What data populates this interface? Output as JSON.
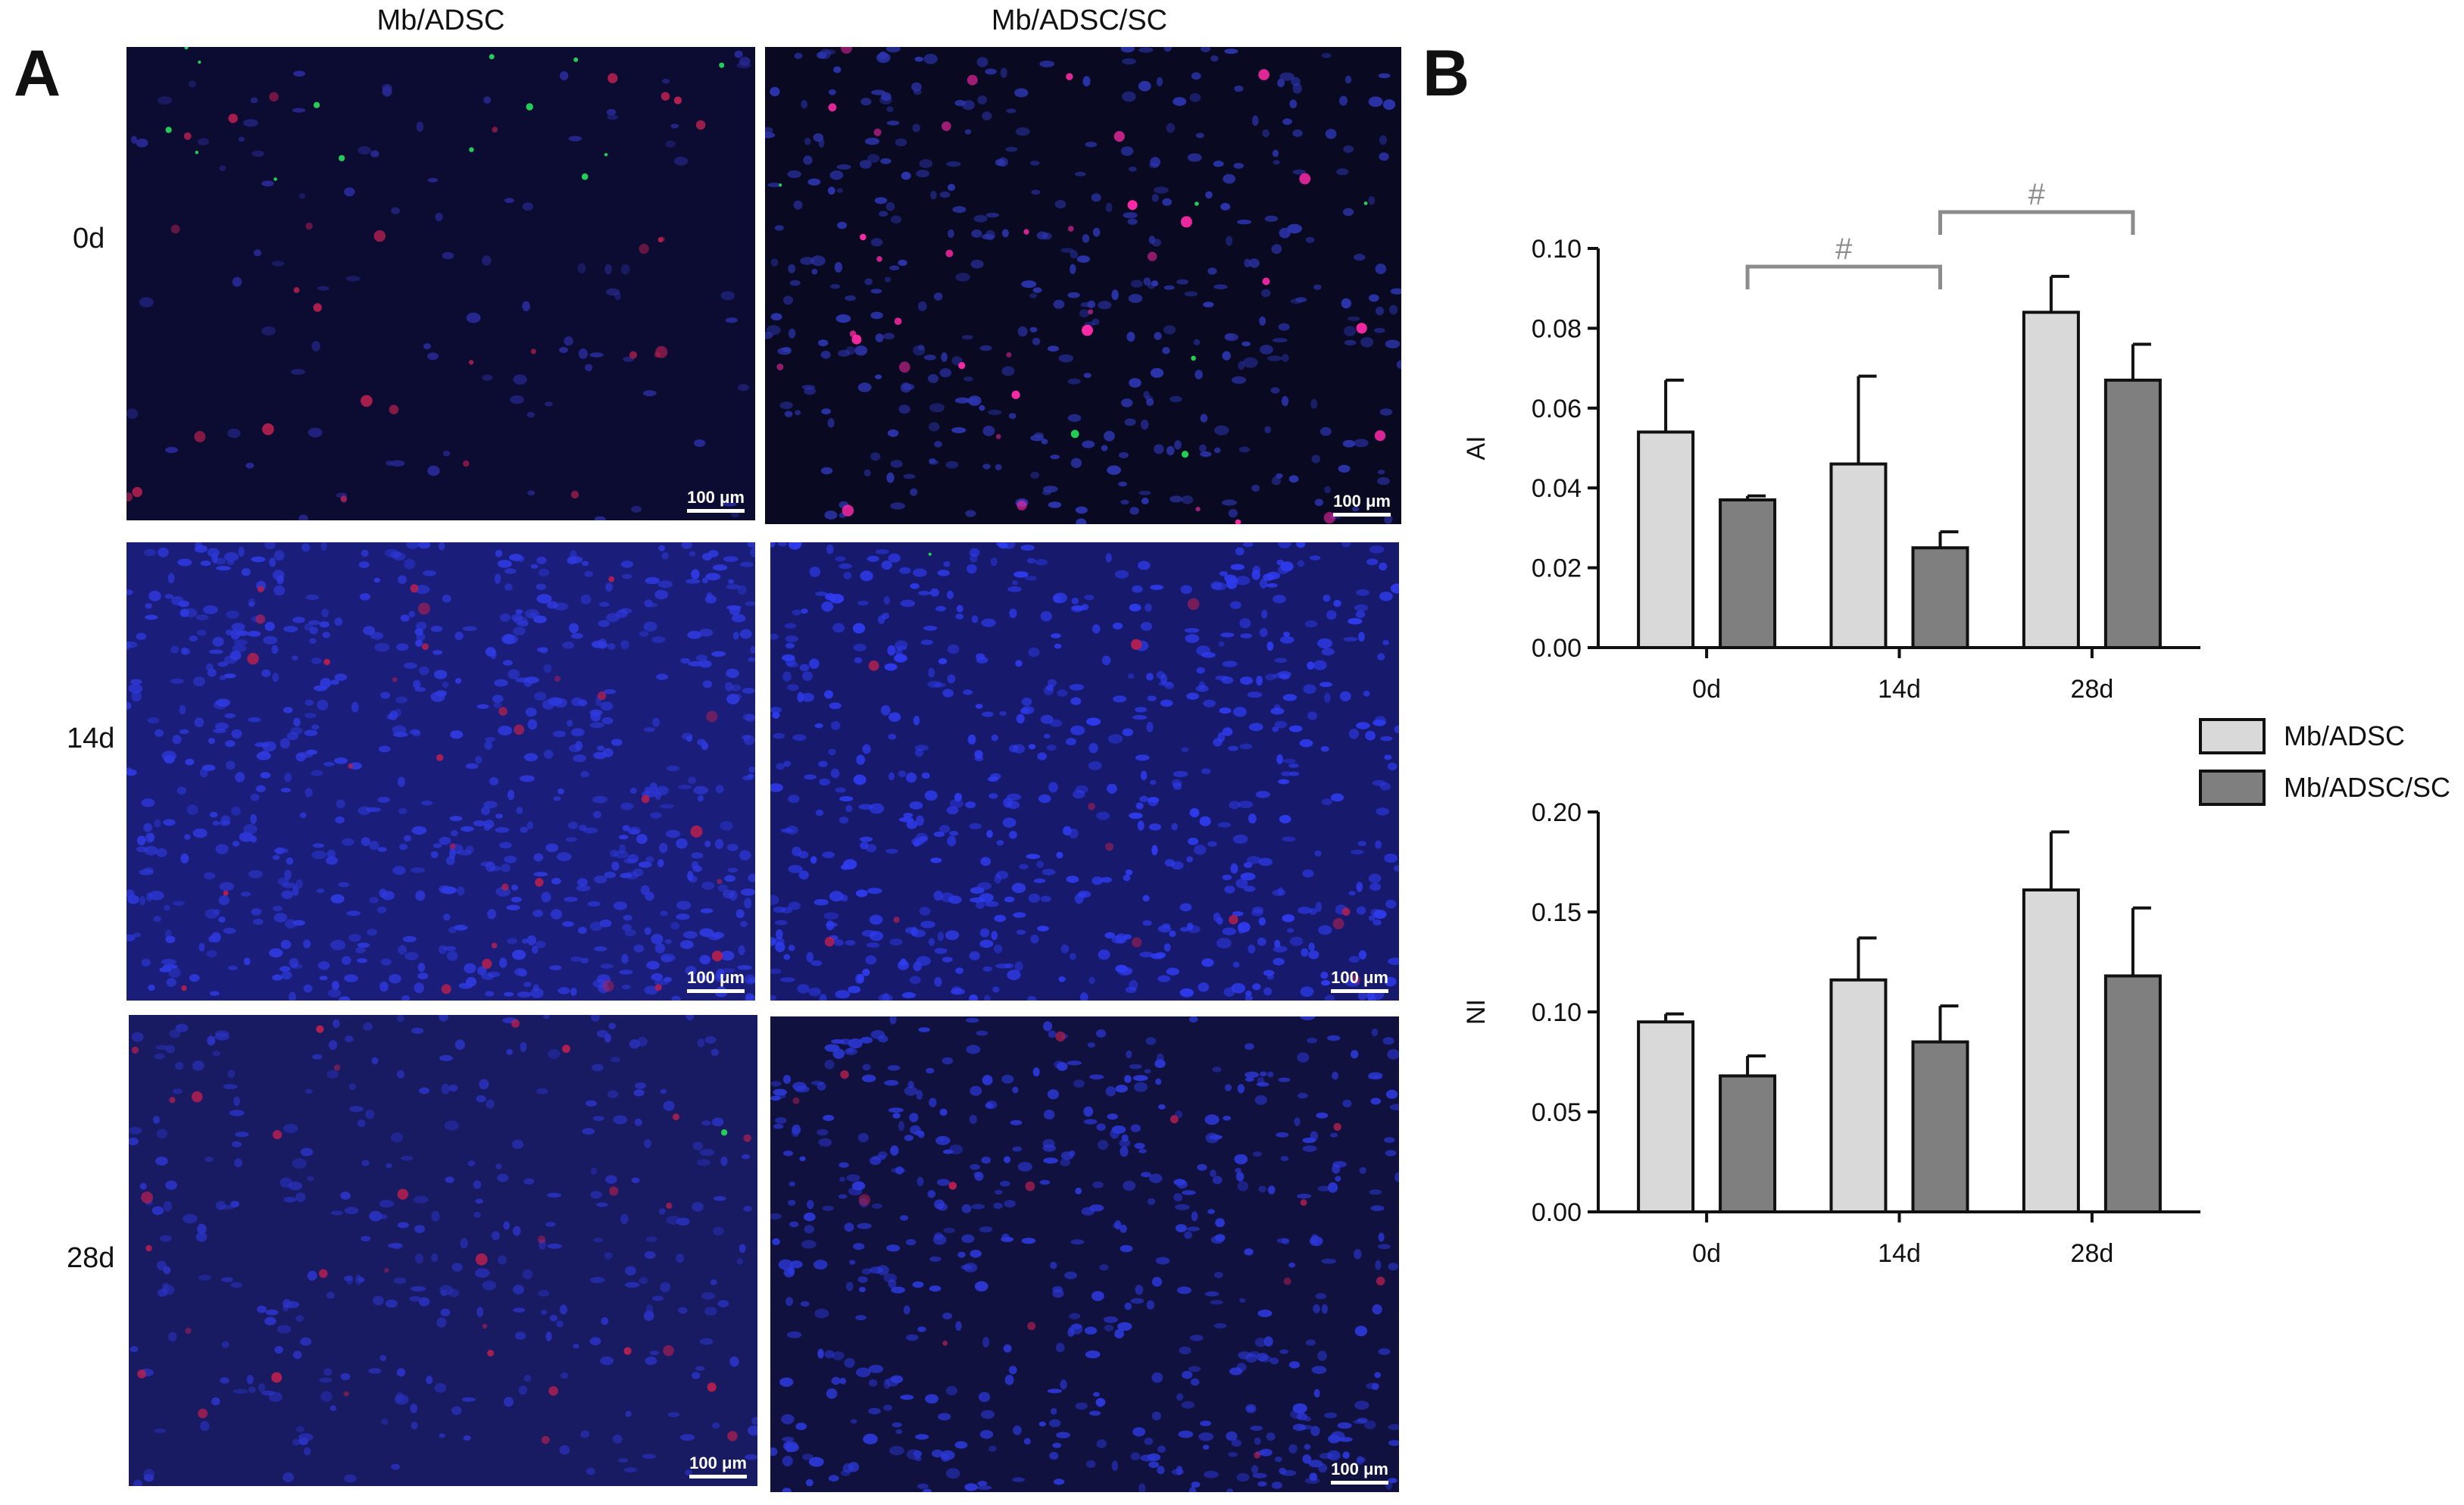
{
  "panel_a": {
    "letter": "A",
    "columns": [
      "Mb/ADSC",
      "Mb/ADSC/SC"
    ],
    "rows": [
      "0d",
      "14d",
      "28d"
    ],
    "scale_bar_label": "100 μm",
    "images": [
      {
        "row": "0d",
        "column": "Mb/ADSC",
        "background": "#0c0c32",
        "nuclei_color": "#2a2a9a",
        "nuclei_count": 90,
        "red_count": 30,
        "green_count": 14
      },
      {
        "row": "0d",
        "column": "Mb/ADSC/SC",
        "background": "#090922",
        "nuclei_color": "#2d36b0",
        "nuclei_count": 380,
        "red_count": 36,
        "green_count": 6
      },
      {
        "row": "14d",
        "column": "Mb/ADSC",
        "background": "#1a1e7a",
        "nuclei_color": "#2f3ae0",
        "nuclei_count": 700,
        "red_count": 30,
        "green_count": 0
      },
      {
        "row": "14d",
        "column": "Mb/ADSC/SC",
        "background": "#16196c",
        "nuclei_color": "#2f3cf0",
        "nuclei_count": 620,
        "red_count": 12,
        "green_count": 1
      },
      {
        "row": "28d",
        "column": "Mb/ADSC",
        "background": "#181a62",
        "nuclei_color": "#2b33c4",
        "nuclei_count": 300,
        "red_count": 32,
        "green_count": 1
      },
      {
        "row": "28d",
        "column": "Mb/ADSC/SC",
        "background": "#10113f",
        "nuclei_color": "#2c38d8",
        "nuclei_count": 520,
        "red_count": 14,
        "green_count": 0
      }
    ]
  },
  "panel_b": {
    "letter": "B",
    "colors": {
      "Mb/ADSC": "#d9d9d9",
      "Mb/ADSC/SC": "#7f7f7f",
      "significance": "#8c8c8c"
    }
  },
  "chart_data": [
    {
      "type": "bar",
      "categories": [
        "0d",
        "14d",
        "28d"
      ],
      "ylabel": "AI",
      "ylim": [
        0,
        0.1
      ],
      "yticks": [
        "0.00",
        "0.02",
        "0.04",
        "0.06",
        "0.08",
        "0.10"
      ],
      "series": [
        {
          "name": "Mb/ADSC",
          "values": [
            0.054,
            0.046,
            0.084
          ],
          "error": [
            0.013,
            0.022,
            0.009
          ]
        },
        {
          "name": "Mb/ADSC/SC",
          "values": [
            0.037,
            0.025,
            0.067
          ],
          "error": [
            0.001,
            0.004,
            0.009
          ]
        }
      ],
      "annotations": [
        {
          "label": "#",
          "from": "0d",
          "to": "14d"
        },
        {
          "label": "#",
          "from": "14d",
          "to": "28d"
        }
      ]
    },
    {
      "type": "bar",
      "categories": [
        "0d",
        "14d",
        "28d"
      ],
      "ylabel": "NI",
      "ylim": [
        0,
        0.2
      ],
      "yticks": [
        "0.00",
        "0.05",
        "0.10",
        "0.15",
        "0.20"
      ],
      "series": [
        {
          "name": "Mb/ADSC",
          "values": [
            0.095,
            0.116,
            0.161
          ],
          "error": [
            0.004,
            0.021,
            0.029
          ]
        },
        {
          "name": "Mb/ADSC/SC",
          "values": [
            0.068,
            0.085,
            0.118
          ],
          "error": [
            0.01,
            0.018,
            0.034
          ]
        }
      ]
    }
  ],
  "legend": {
    "entries": [
      "Mb/ADSC",
      "Mb/ADSC/SC"
    ]
  }
}
